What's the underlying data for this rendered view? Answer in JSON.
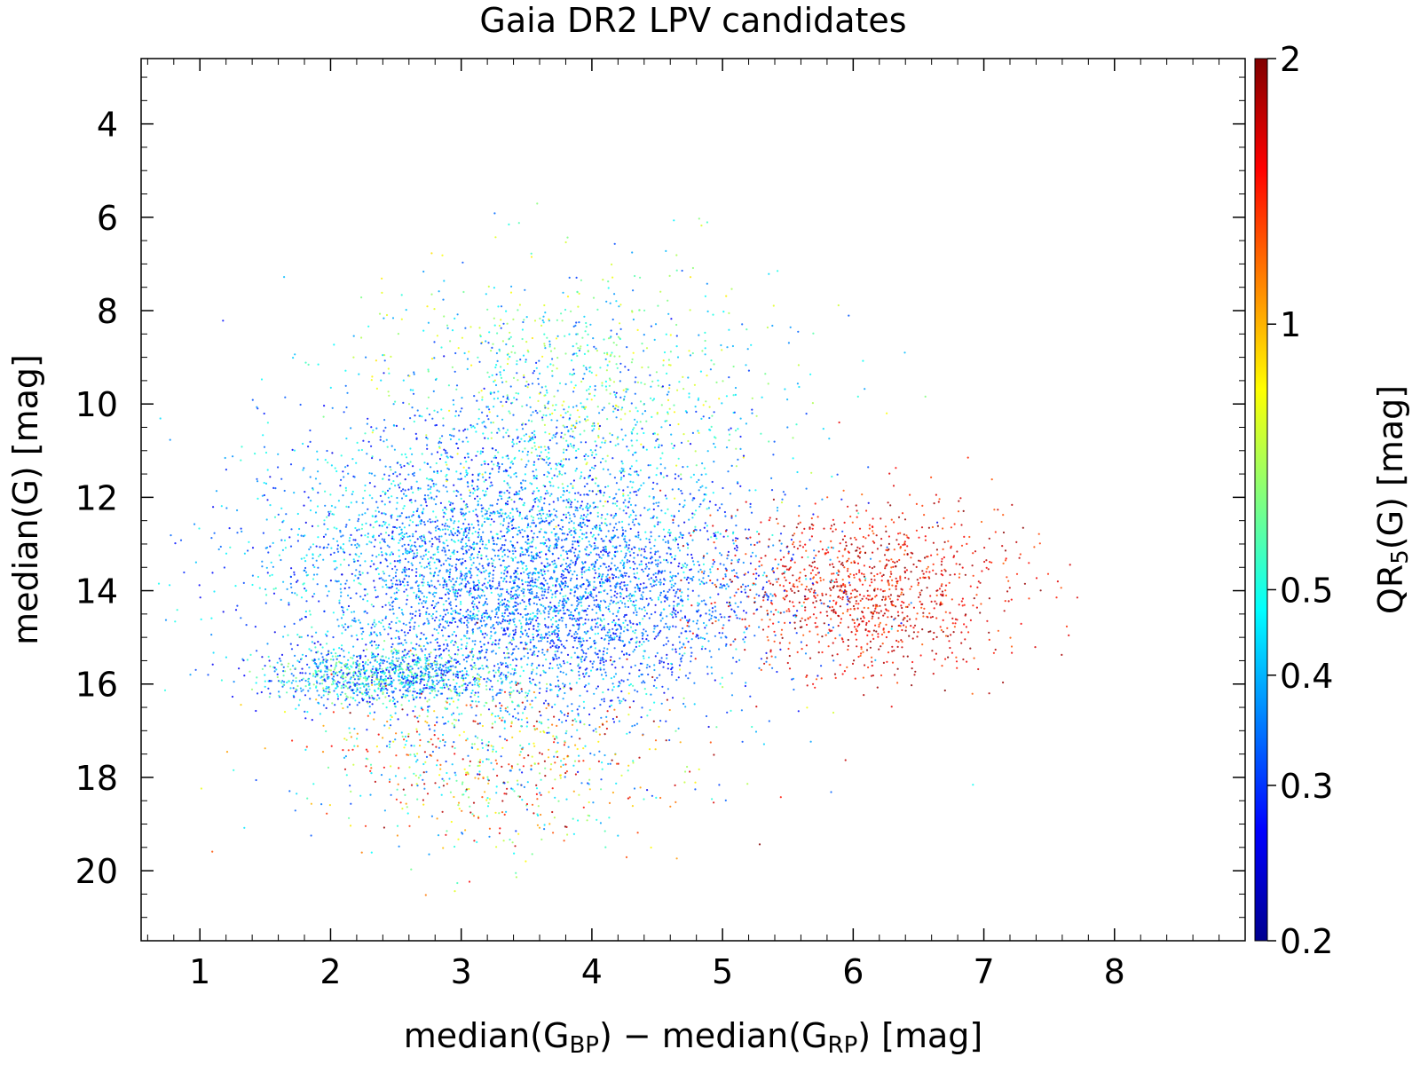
{
  "chart_data": {
    "type": "scatter",
    "title": "Gaia DR2 LPV candidates",
    "xlabel": {
      "prefix": "median(G",
      "sub1": "BP",
      "middle": ") − median(G",
      "sub2": "RP",
      "suffix": ")  [mag]"
    },
    "ylabel": "median(G)  [mag]",
    "colorbar_label": {
      "prefix": "QR",
      "sub": "5",
      "suffix": "(G)  [mag]"
    },
    "xlim": [
      0.55,
      9.0
    ],
    "ylim": [
      21.5,
      2.6
    ],
    "y_inverted": true,
    "x_ticks": [
      1,
      2,
      3,
      4,
      5,
      6,
      7,
      8
    ],
    "x_tick_labels": [
      "1",
      "2",
      "3",
      "4",
      "5",
      "6",
      "7",
      "8"
    ],
    "y_ticks": [
      4,
      6,
      8,
      10,
      12,
      14,
      16,
      18,
      20
    ],
    "y_tick_labels": [
      "4",
      "6",
      "8",
      "10",
      "12",
      "14",
      "16",
      "18",
      "20"
    ],
    "colorbar": {
      "scale": "log",
      "range": [
        0.2,
        2
      ],
      "ticks": [
        0.2,
        0.3,
        0.4,
        0.5,
        1,
        2
      ],
      "tick_labels": [
        "0.2",
        "0.3",
        "0.4",
        "0.5",
        "1",
        "2"
      ],
      "colormap": "jet"
    },
    "grid": false,
    "legend": "none",
    "point_clusters": [
      {
        "x": 3.3,
        "y": 13.2,
        "sx": 0.9,
        "sy": 1.6,
        "color_value_range": [
          0.25,
          0.55
        ],
        "weight": 0.4
      },
      {
        "x": 4.0,
        "y": 14.3,
        "sx": 0.8,
        "sy": 1.1,
        "color_value_range": [
          0.25,
          0.4
        ],
        "weight": 0.18
      },
      {
        "x": 2.4,
        "y": 15.85,
        "sx": 0.45,
        "sy": 0.3,
        "color_value_range": [
          0.25,
          0.7
        ],
        "weight": 0.12
      },
      {
        "x": 3.9,
        "y": 9.5,
        "sx": 0.8,
        "sy": 1.3,
        "color_value_range": [
          0.3,
          0.9
        ],
        "weight": 0.1
      },
      {
        "x": 6.1,
        "y": 14.0,
        "sx": 0.55,
        "sy": 0.9,
        "color_value_range": [
          1.2,
          2.0
        ],
        "weight": 0.12
      },
      {
        "x": 3.3,
        "y": 17.6,
        "sx": 0.8,
        "sy": 1.0,
        "color_value_range": [
          0.3,
          2.0
        ],
        "weight": 0.08
      }
    ]
  }
}
